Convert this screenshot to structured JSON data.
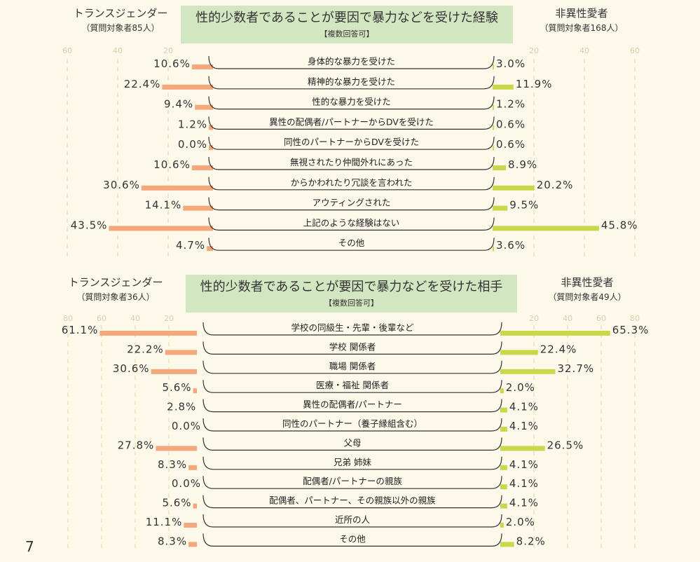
{
  "page_number": "7",
  "colors": {
    "transgender": "#f3a77b",
    "heterosexual": "#c8d84a",
    "title_bg": "#d3e6c2",
    "grid": "#e8d9a8"
  },
  "chart_data": [
    {
      "type": "bar",
      "orientation": "butterfly-horizontal",
      "title": "性的少数者であることが要因で暴力などを受けた経験",
      "subtitle": "【複数回答可】",
      "left_group": {
        "name": "トランスジェンダー",
        "note": "（質問対象者85人）"
      },
      "right_group": {
        "name": "非異性愛者",
        "note": "（質問対象者168人）"
      },
      "axis_ticks": [
        20,
        40,
        60
      ],
      "xlim": [
        0,
        60
      ],
      "grid": true,
      "categories": [
        "身体的な暴力を受けた",
        "精神的な暴力を受けた",
        "性的な暴力を受けた",
        "異性の配偶者/パートナーからDVを受けた",
        "同性のパートナーからDVを受けた",
        "無視されたり仲間外れにあった",
        "からかわれたり冗談を言われた",
        "アウティングされた",
        "上記のような経験はない",
        "その他"
      ],
      "series": [
        {
          "name": "トランスジェンダー",
          "values": [
            10.6,
            22.4,
            9.4,
            1.2,
            0.0,
            10.6,
            30.6,
            14.1,
            43.5,
            4.7
          ]
        },
        {
          "name": "非異性愛者",
          "values": [
            3.0,
            11.9,
            1.2,
            0.6,
            0.6,
            8.9,
            20.2,
            9.5,
            45.8,
            3.6
          ]
        }
      ]
    },
    {
      "type": "bar",
      "orientation": "butterfly-horizontal",
      "title": "性的少数者であることが要因で暴力などを受けた相手",
      "subtitle": "【複数回答可】",
      "left_group": {
        "name": "トランスジェンダー",
        "note": "（質問対象者36人）"
      },
      "right_group": {
        "name": "非異性愛者",
        "note": "（質問対象者49人）"
      },
      "axis_ticks": [
        20,
        40,
        60,
        80
      ],
      "xlim": [
        0,
        80
      ],
      "grid": true,
      "categories": [
        "学校の同級生・先輩・後輩など",
        "学校 関係者",
        "職場 関係者",
        "医療・福祉 関係者",
        "異性の配偶者/パートナー",
        "同性のパートナー（養子縁組含む）",
        "父母",
        "兄弟 姉妹",
        "配偶者/パートナーの親族",
        "配偶者、パートナー、その親族以外の親族",
        "近所の人",
        "その他"
      ],
      "series": [
        {
          "name": "トランスジェンダー",
          "values": [
            61.1,
            22.2,
            30.6,
            5.6,
            2.8,
            0.0,
            27.8,
            8.3,
            0.0,
            5.6,
            11.1,
            8.3
          ]
        },
        {
          "name": "非異性愛者",
          "values": [
            65.3,
            22.4,
            32.7,
            2.0,
            4.1,
            4.1,
            26.5,
            4.1,
            4.1,
            4.1,
            2.0,
            8.2
          ]
        }
      ]
    }
  ]
}
